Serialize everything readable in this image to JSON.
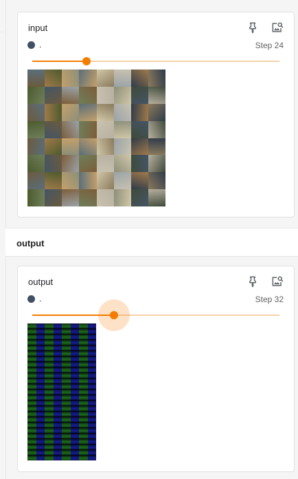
{
  "cards": [
    {
      "title": "input",
      "run_name": ".",
      "step_label": "Step 24",
      "slider_fraction": 0.22,
      "slider_active": false,
      "pin_icon": "pin-icon",
      "image_search_icon": "image-search-icon"
    },
    {
      "title": "output",
      "run_name": ".",
      "step_label": "Step 32",
      "slider_fraction": 0.33,
      "slider_active": true,
      "pin_icon": "pin-icon",
      "image_search_icon": "image-search-icon"
    }
  ],
  "section": {
    "title": "output"
  },
  "colors": {
    "accent": "#f57c00",
    "run_dot": "#425066"
  }
}
